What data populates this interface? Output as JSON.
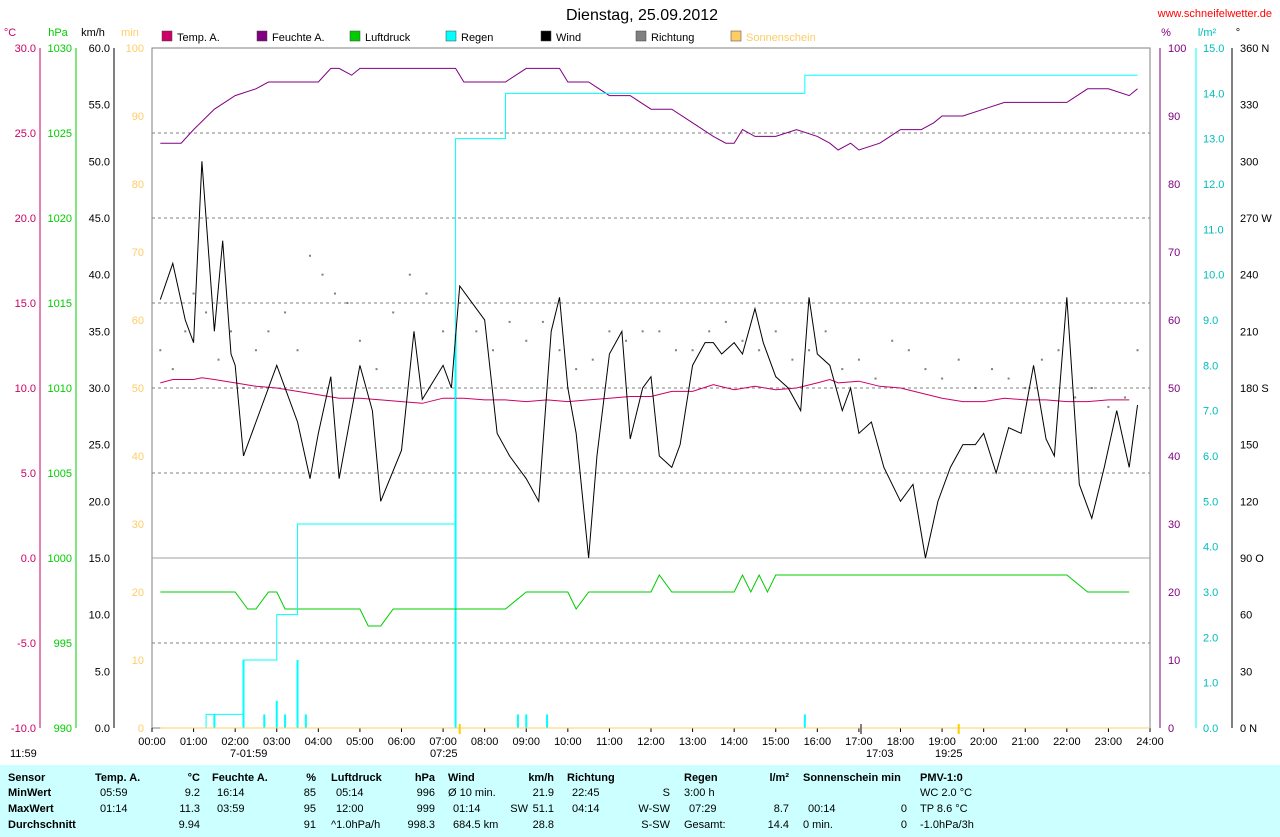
{
  "colors": {
    "temp": "#cc0066",
    "humid": "#800080",
    "pressure": "#00cc00",
    "rain": "#00ffff",
    "wind": "#000000",
    "direction": "#808080",
    "sunshine": "#ffcc66",
    "bg_table": "#ccffff"
  },
  "chart": {
    "title": "Dienstag, 25.09.2012",
    "website": "www.schneifelwetter.de",
    "unit_labels": {
      "temp": "°C",
      "pressure": "hPa",
      "wind": "km/h",
      "sun": "min",
      "humid": "%",
      "rain": "l/m²",
      "dir": "°"
    },
    "legend": [
      "Temp. A.",
      "Feuchte A.",
      "Luftdruck",
      "Regen",
      "Wind",
      "Richtung",
      "Sonnenschein"
    ],
    "time_marks": [
      "11:59",
      "7-01:59",
      "07:25",
      "17:03",
      "19:25"
    ]
  },
  "chart_data": {
    "type": "line",
    "x_ticks": [
      "00:00",
      "01:00",
      "02:00",
      "03:00",
      "04:00",
      "05:00",
      "06:00",
      "07:00",
      "08:00",
      "09:00",
      "10:00",
      "11:00",
      "12:00",
      "13:00",
      "14:00",
      "15:00",
      "16:00",
      "17:00",
      "18:00",
      "19:00",
      "20:00",
      "21:00",
      "22:00",
      "23:00",
      "24:00"
    ],
    "axes": {
      "temp": {
        "ticks": [
          "30.0",
          "25.0",
          "20.0",
          "15.0",
          "10.0",
          "5.0",
          "0.0",
          "-5.0",
          "-10.0"
        ],
        "ylim": [
          -10,
          30
        ]
      },
      "pressure": {
        "ticks": [
          "1030",
          "1025",
          "1020",
          "1015",
          "1010",
          "1005",
          "1000",
          "995",
          "990"
        ],
        "ylim": [
          990,
          1030
        ]
      },
      "wind": {
        "ticks": [
          "60.0",
          "55.0",
          "50.0",
          "45.0",
          "40.0",
          "35.0",
          "30.0",
          "25.0",
          "20.0",
          "15.0",
          "10.0",
          "5.0",
          "0.0"
        ],
        "ylim": [
          0,
          60
        ]
      },
      "sun": {
        "ticks": [
          "100",
          "90",
          "80",
          "70",
          "60",
          "50",
          "40",
          "30",
          "20",
          "10",
          "0"
        ],
        "ylim": [
          0,
          100
        ]
      },
      "humid": {
        "ticks": [
          "100",
          "90",
          "80",
          "70",
          "60",
          "50",
          "40",
          "30",
          "20",
          "10",
          "0"
        ],
        "ylim": [
          0,
          100
        ]
      },
      "rain": {
        "ticks": [
          "15.0",
          "14.0",
          "13.0",
          "12.0",
          "11.0",
          "10.0",
          "9.0",
          "8.0",
          "7.0",
          "6.0",
          "5.0",
          "4.0",
          "3.0",
          "2.0",
          "1.0",
          "0.0"
        ],
        "ylim": [
          0,
          15
        ]
      },
      "dir": {
        "ticks": [
          "360 N",
          "330",
          "300",
          "270 W",
          "240",
          "210",
          "180 S",
          "150",
          "120",
          "90 O",
          "60",
          "30",
          "0 N"
        ],
        "ylim": [
          0,
          360
        ]
      }
    },
    "series": [
      {
        "name": "Temp. A.",
        "axis": "temp",
        "x": [
          0.2,
          0.5,
          1.0,
          1.2,
          1.5,
          2.0,
          2.5,
          3.0,
          3.5,
          4.0,
          4.5,
          5.0,
          5.5,
          6.0,
          6.5,
          7.0,
          7.5,
          8.0,
          8.5,
          9.0,
          9.5,
          10.0,
          10.5,
          11.0,
          11.5,
          12.0,
          12.5,
          13.0,
          13.5,
          14.0,
          14.5,
          15.0,
          15.5,
          16.0,
          16.3,
          16.5,
          17.0,
          17.5,
          18.0,
          18.5,
          19.0,
          19.5,
          20.0,
          20.5,
          21.0,
          21.5,
          22.0,
          22.5,
          23.0,
          23.5
        ],
        "y": [
          10.3,
          10.5,
          10.5,
          10.6,
          10.5,
          10.3,
          10.1,
          10.0,
          9.8,
          9.6,
          9.4,
          9.4,
          9.3,
          9.2,
          9.1,
          9.4,
          9.4,
          9.3,
          9.3,
          9.2,
          9.3,
          9.2,
          9.3,
          9.4,
          9.5,
          9.5,
          9.8,
          9.8,
          10.2,
          9.9,
          10.1,
          9.9,
          10.0,
          10.3,
          10.5,
          10.3,
          10.4,
          10.1,
          10.0,
          9.7,
          9.4,
          9.2,
          9.2,
          9.4,
          9.3,
          9.3,
          9.2,
          9.2,
          9.3,
          9.3
        ]
      },
      {
        "name": "Feuchte A.",
        "axis": "humid",
        "x": [
          0.2,
          0.7,
          1.0,
          1.5,
          2.0,
          2.5,
          2.8,
          3.0,
          3.5,
          3.8,
          4.0,
          4.3,
          4.5,
          4.8,
          5.0,
          5.5,
          6.0,
          6.5,
          7.0,
          7.3,
          7.5,
          8.0,
          8.5,
          9.0,
          9.5,
          9.8,
          10.0,
          10.5,
          11.0,
          11.5,
          12.0,
          12.5,
          13.0,
          13.5,
          13.8,
          14.0,
          14.2,
          14.5,
          15.0,
          15.5,
          16.0,
          16.3,
          16.5,
          16.8,
          17.0,
          17.5,
          18.0,
          18.5,
          18.8,
          19.0,
          19.5,
          20.0,
          20.5,
          21.0,
          21.5,
          22.0,
          22.5,
          23.0,
          23.5,
          23.7
        ],
        "y": [
          86,
          86,
          88,
          91,
          93,
          94,
          95,
          95,
          95,
          95,
          95,
          97,
          97,
          96,
          97,
          97,
          97,
          97,
          97,
          97,
          95,
          95,
          95,
          97,
          97,
          97,
          95,
          95,
          93,
          93,
          91,
          91,
          89,
          87,
          86,
          86,
          88,
          87,
          87,
          88,
          87,
          86,
          85,
          86,
          85,
          86,
          88,
          88,
          89,
          90,
          90,
          91,
          92,
          92,
          92,
          92,
          94,
          94,
          93,
          94
        ]
      },
      {
        "name": "Luftdruck",
        "axis": "pressure",
        "x": [
          0.2,
          1.0,
          2.0,
          2.3,
          2.5,
          2.8,
          3.0,
          3.2,
          3.5,
          4.0,
          4.5,
          5.0,
          5.2,
          5.5,
          5.8,
          6.0,
          6.5,
          7.0,
          7.5,
          8.0,
          8.5,
          9.0,
          9.5,
          10.0,
          10.2,
          10.5,
          11.0,
          11.5,
          12.0,
          12.2,
          12.5,
          13.0,
          13.5,
          14.0,
          14.2,
          14.4,
          14.6,
          14.8,
          15.0,
          15.5,
          16.0,
          16.5,
          17.0,
          17.5,
          18.0,
          18.5,
          19.0,
          20.0,
          21.0,
          21.5,
          22.0,
          22.5,
          23.0,
          23.5
        ],
        "y": [
          998,
          998,
          998,
          997,
          997,
          998,
          998,
          997,
          997,
          997,
          997,
          997,
          996,
          996,
          997,
          997,
          997,
          997,
          997,
          997,
          997,
          998,
          998,
          998,
          997,
          998,
          998,
          998,
          998,
          999,
          998,
          998,
          998,
          998,
          999,
          998,
          999,
          998,
          999,
          999,
          999,
          999,
          999,
          999,
          999,
          999,
          999,
          999,
          999,
          999,
          999,
          998,
          998,
          998
        ]
      },
      {
        "name": "Regen",
        "axis": "rain",
        "x": [
          0.2,
          1.0,
          1.3,
          2.0,
          2.2,
          2.5,
          3.0,
          3.5,
          3.5,
          4.0,
          7.1,
          7.2,
          7.3,
          7.5,
          8.0,
          8.5,
          9.0,
          9.5,
          10.0,
          15.5,
          15.7,
          16.0,
          23.7
        ],
        "y": [
          0.0,
          0.0,
          0.3,
          0.3,
          1.5,
          1.5,
          2.5,
          4.0,
          4.5,
          4.5,
          4.5,
          4.5,
          13.0,
          13.0,
          13.0,
          14.0,
          14.0,
          14.0,
          14.0,
          14.0,
          14.4,
          14.4,
          14.4
        ]
      },
      {
        "name": "Wind",
        "axis": "wind",
        "x": [
          0.2,
          0.5,
          0.8,
          1.0,
          1.2,
          1.5,
          1.7,
          1.9,
          2.0,
          2.2,
          2.5,
          3.0,
          3.5,
          3.8,
          4.0,
          4.3,
          4.5,
          5.0,
          5.3,
          5.5,
          6.0,
          6.3,
          6.5,
          7.0,
          7.2,
          7.4,
          7.6,
          8.0,
          8.3,
          8.6,
          9.0,
          9.3,
          9.6,
          9.8,
          10.0,
          10.2,
          10.5,
          10.7,
          11.0,
          11.3,
          11.5,
          11.8,
          12.0,
          12.2,
          12.5,
          12.7,
          13.0,
          13.3,
          13.5,
          13.7,
          14.0,
          14.2,
          14.5,
          14.7,
          15.0,
          15.3,
          15.6,
          15.8,
          16.0,
          16.3,
          16.6,
          16.8,
          17.0,
          17.3,
          17.6,
          18.0,
          18.3,
          18.6,
          18.9,
          19.2,
          19.5,
          19.8,
          20.0,
          20.3,
          20.6,
          20.9,
          21.2,
          21.5,
          21.7,
          22.0,
          22.3,
          22.6,
          22.9,
          23.2,
          23.5,
          23.7
        ],
        "y": [
          37.8,
          41.0,
          36.0,
          34.0,
          50.0,
          35.0,
          43.0,
          33.0,
          32.0,
          24.0,
          27.0,
          32.0,
          27.0,
          22.0,
          26.0,
          31.0,
          22.0,
          32.0,
          28.0,
          20.0,
          24.5,
          35.0,
          29.0,
          32.0,
          30.0,
          39.0,
          38.0,
          36.0,
          26.0,
          24.0,
          22.0,
          20.0,
          35.0,
          38.0,
          30.0,
          26.0,
          15.0,
          24.0,
          33.0,
          35.0,
          25.5,
          30.0,
          31.0,
          24.0,
          23.0,
          25.0,
          32.0,
          34.0,
          34.0,
          33.0,
          34.0,
          33.0,
          37.0,
          34.0,
          31.0,
          30.0,
          28.0,
          38.0,
          33.0,
          32.0,
          28.0,
          30.0,
          26.0,
          27.0,
          23.0,
          20.0,
          21.5,
          15.0,
          20.0,
          23.0,
          25.0,
          25.0,
          26.0,
          22.5,
          26.5,
          26.0,
          32.0,
          25.5,
          24.0,
          38.0,
          21.5,
          18.5,
          23.0,
          28.0,
          23.0,
          28.5
        ]
      },
      {
        "name": "Richtung",
        "axis": "dir",
        "x": [
          0.2,
          0.5,
          0.8,
          1.0,
          1.3,
          1.6,
          1.9,
          2.2,
          2.5,
          2.8,
          3.2,
          3.5,
          3.8,
          4.1,
          4.4,
          4.7,
          5.0,
          5.4,
          5.8,
          6.2,
          6.6,
          7.0,
          7.4,
          7.8,
          8.2,
          8.6,
          9.0,
          9.4,
          9.8,
          10.2,
          10.6,
          11.0,
          11.4,
          11.8,
          12.2,
          12.6,
          13.0,
          13.4,
          13.8,
          14.2,
          14.6,
          15.0,
          15.4,
          15.8,
          16.2,
          16.6,
          17.0,
          17.4,
          17.8,
          18.2,
          18.6,
          19.0,
          19.4,
          19.8,
          20.2,
          20.6,
          21.0,
          21.4,
          21.8,
          22.2,
          22.6,
          23.0,
          23.4,
          23.7
        ],
        "y": [
          200,
          190,
          210,
          230,
          220,
          195,
          210,
          180,
          200,
          210,
          220,
          200,
          250,
          240,
          230,
          225,
          205,
          190,
          220,
          240,
          230,
          210,
          225,
          210,
          200,
          215,
          205,
          215,
          200,
          190,
          195,
          210,
          205,
          210,
          210,
          200,
          200,
          210,
          215,
          205,
          200,
          210,
          195,
          200,
          210,
          190,
          195,
          185,
          205,
          200,
          190,
          185,
          195,
          180,
          190,
          185,
          180,
          195,
          200,
          175,
          180,
          170,
          175,
          200
        ]
      },
      {
        "name": "Sonnenschein",
        "axis": "sun",
        "x": [
          0.2,
          24.0
        ],
        "y": [
          0,
          0
        ]
      }
    ],
    "rain_bars": {
      "x": [
        1.5,
        2.2,
        2.7,
        3.0,
        3.2,
        3.5,
        3.7,
        7.3,
        8.8,
        9.0,
        9.5,
        15.7
      ],
      "y": [
        0.3,
        1.5,
        0.3,
        0.6,
        0.3,
        1.5,
        0.3,
        8.7,
        0.3,
        0.3,
        0.3,
        0.3
      ]
    },
    "grid": true
  },
  "table": {
    "row_labels": [
      "Sensor",
      "MinWert",
      "MaxWert",
      "Durchschnitt"
    ],
    "temp": {
      "header": "Temp. A.",
      "unit": "°C",
      "min_time": "05:59",
      "min": "9.2",
      "max_time": "01:14",
      "max": "11.3",
      "avg": "9.94"
    },
    "humid": {
      "header": "Feuchte A.",
      "unit": "%",
      "min_time": "16:14",
      "min": "85",
      "max_time": "03:59",
      "max": "95",
      "avg": "91"
    },
    "pressure": {
      "header": "Luftdruck",
      "unit": "hPa",
      "min_time": "05:14",
      "min": "996",
      "max_time": "12:00",
      "max": "999",
      "avg_label": "^1.0hPa/h",
      "avg": "998.3"
    },
    "wind": {
      "header": "Wind",
      "unit": "km/h",
      "min_label": "Ø 10 min.",
      "min": "21.9",
      "max_time": "01:14",
      "max_dir": "SW",
      "max": "51.1",
      "avg_label": "684.5 km",
      "avg": "28.8"
    },
    "direction": {
      "header": "Richtung",
      "min_time": "22:45",
      "min": "S",
      "max_time": "04:14",
      "max": "W-SW",
      "avg": "S-SW"
    },
    "rain": {
      "header": "Regen",
      "unit": "l/m²",
      "min_label": "3:00 h",
      "max_time": "07:29",
      "max": "8.7",
      "avg_label": "Gesamt:",
      "avg": "14.4"
    },
    "sun": {
      "header": "Sonnenschein min",
      "max_time": "00:14",
      "max": "0",
      "avg_label": "0 min.",
      "avg": "0"
    },
    "pmv": {
      "header": "PMV-1:0",
      "row1": "WC 2.0 °C",
      "row2": "TP 8.6 °C",
      "row3": "-1.0hPa/3h"
    }
  }
}
